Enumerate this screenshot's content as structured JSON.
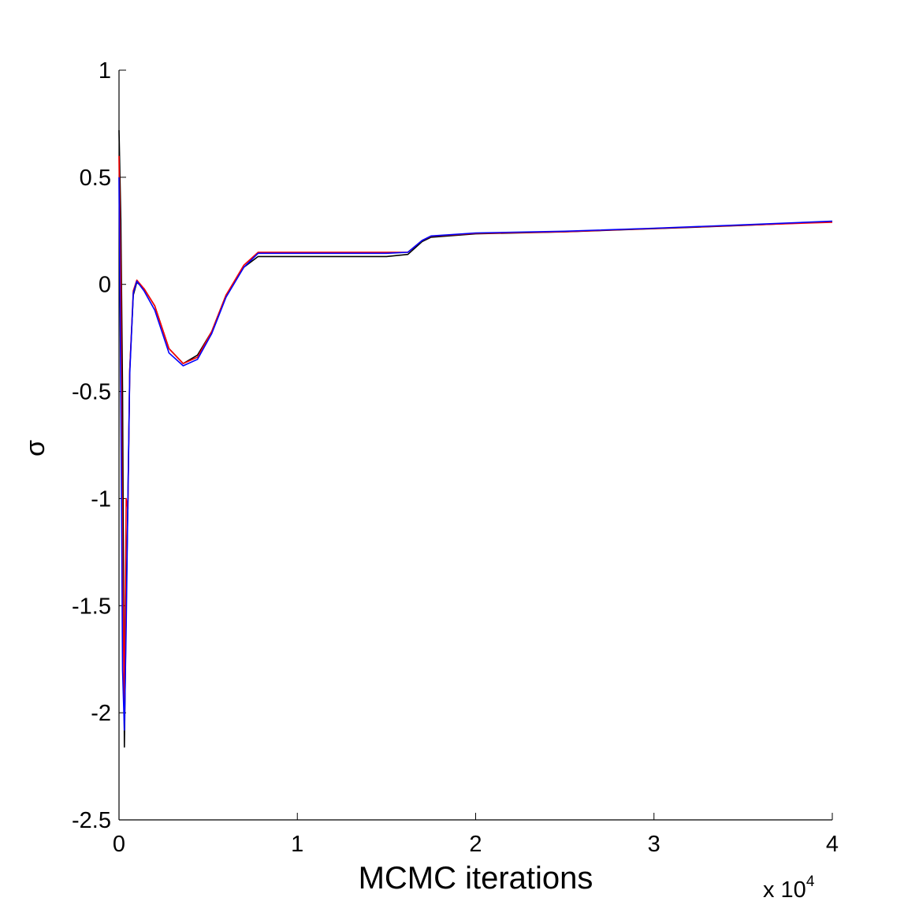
{
  "chart_data": {
    "type": "line",
    "title": "",
    "xlabel": "MCMC iterations",
    "ylabel": "σ",
    "x_multiplier": {
      "base": "x 10",
      "exponent": "4"
    },
    "xlim": [
      0,
      4
    ],
    "ylim": [
      -2.5,
      1
    ],
    "x_ticks": [
      0,
      1,
      2,
      3,
      4
    ],
    "x_tick_labels": [
      "0",
      "1",
      "2",
      "3",
      "4"
    ],
    "y_ticks": [
      1,
      0.5,
      0,
      -0.5,
      -1,
      -1.5,
      -2,
      -2.5
    ],
    "y_tick_labels": [
      "1",
      "0.5",
      "0",
      "-0.5",
      "-1",
      "-1.5",
      "-2",
      "-2.5"
    ],
    "grid": false,
    "series": [
      {
        "color": "#000000",
        "x": [
          0,
          0.01,
          0.02,
          0.03,
          0.04,
          0.05,
          0.06,
          0.08,
          0.1,
          0.14,
          0.2,
          0.28,
          0.36,
          0.44,
          0.52,
          0.6,
          0.7,
          0.78,
          0.82,
          0.84,
          1.0,
          1.5,
          1.62,
          1.7,
          1.75,
          2.0,
          2.5,
          3.0,
          3.5,
          4.0
        ],
        "y": [
          0.72,
          0.3,
          -0.5,
          -2.16,
          -1.5,
          -1.0,
          -0.4,
          -0.05,
          0.01,
          -0.02,
          -0.1,
          -0.3,
          -0.37,
          -0.33,
          -0.22,
          -0.05,
          0.08,
          0.13,
          0.13,
          0.13,
          0.13,
          0.13,
          0.14,
          0.2,
          0.22,
          0.236,
          0.245,
          0.26,
          0.275,
          0.293
        ]
      },
      {
        "color": "#ff0000",
        "x": [
          0,
          0.01,
          0.02,
          0.03,
          0.04,
          0.05,
          0.06,
          0.08,
          0.1,
          0.14,
          0.2,
          0.28,
          0.36,
          0.44,
          0.52,
          0.6,
          0.7,
          0.78,
          0.82,
          0.84,
          1.0,
          1.5,
          1.62,
          1.7,
          1.75,
          2.0,
          2.5,
          3.0,
          3.5,
          4.0
        ],
        "y": [
          0.6,
          0.0,
          -1.3,
          -2.0,
          -1.0,
          -1.05,
          -0.4,
          -0.03,
          0.02,
          -0.02,
          -0.1,
          -0.3,
          -0.37,
          -0.34,
          -0.22,
          -0.05,
          0.09,
          0.15,
          0.15,
          0.15,
          0.15,
          0.15,
          0.15,
          0.205,
          0.225,
          0.238,
          0.246,
          0.261,
          0.276,
          0.29
        ]
      },
      {
        "color": "#0000ff",
        "x": [
          0,
          0.01,
          0.02,
          0.03,
          0.04,
          0.05,
          0.06,
          0.08,
          0.1,
          0.14,
          0.2,
          0.28,
          0.36,
          0.44,
          0.52,
          0.6,
          0.7,
          0.78,
          0.82,
          0.84,
          1.0,
          1.5,
          1.62,
          1.7,
          1.75,
          2.0,
          2.5,
          3.0,
          3.5,
          4.0
        ],
        "y": [
          0.5,
          -0.5,
          -1.8,
          -2.08,
          -1.6,
          -1.0,
          -0.42,
          -0.04,
          0.015,
          -0.03,
          -0.12,
          -0.32,
          -0.38,
          -0.35,
          -0.23,
          -0.06,
          0.08,
          0.145,
          0.145,
          0.145,
          0.145,
          0.145,
          0.15,
          0.205,
          0.226,
          0.24,
          0.248,
          0.262,
          0.278,
          0.295
        ]
      }
    ]
  }
}
